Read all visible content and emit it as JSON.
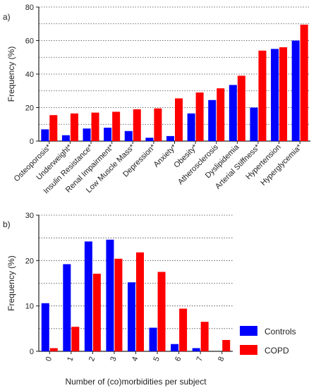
{
  "chart_data": [
    {
      "type": "bar",
      "panel_label": "a)",
      "ylabel": "Frequency (%)",
      "ylim": [
        0,
        80
      ],
      "yticks": [
        0,
        20,
        40,
        60,
        80
      ],
      "grid": "dotted-horizontal",
      "categories": [
        "Osteoporosis*",
        "Underweight*",
        "Insulin Resistance*",
        "Renal Impairment*",
        "Low Muscle Mass*",
        "Depression*",
        "Anxiety*",
        "Obesity*",
        "Atherosclerosis",
        "Dyslipidemia",
        "Arterial Stiffness*",
        "Hypertension",
        "Hyperglycemia*"
      ],
      "series": [
        {
          "name": "Controls",
          "color": "#0000ff",
          "values": [
            7,
            3.5,
            7.5,
            8,
            6,
            2,
            3,
            16.5,
            24.5,
            33.5,
            20,
            55,
            60
          ]
        },
        {
          "name": "COPD",
          "color": "#ff0000",
          "values": [
            15.5,
            16.5,
            17,
            17.5,
            19,
            19.5,
            25.5,
            29,
            31.5,
            39,
            54,
            56,
            69.5
          ]
        }
      ]
    },
    {
      "type": "bar",
      "panel_label": "b)",
      "xlabel": "Number of (co)morbidities per subject",
      "ylabel": "Frequency (%)",
      "ylim": [
        0,
        30
      ],
      "yticks": [
        0,
        10,
        20,
        30
      ],
      "grid": "dotted-horizontal",
      "categories": [
        "0",
        "1",
        "2",
        "3",
        "4",
        "5",
        "6",
        "7",
        "8"
      ],
      "series": [
        {
          "name": "Controls",
          "color": "#0000ff",
          "values": [
            10.6,
            19.2,
            24.2,
            24.6,
            15.2,
            5.2,
            1.6,
            0.7,
            0
          ]
        },
        {
          "name": "COPD",
          "color": "#ff0000",
          "values": [
            0.7,
            5.4,
            17.1,
            20.4,
            21.8,
            17.5,
            9.4,
            6.5,
            2.5
          ]
        }
      ],
      "legend": {
        "placement": "right",
        "entries": [
          "Controls",
          "COPD"
        ]
      }
    }
  ]
}
